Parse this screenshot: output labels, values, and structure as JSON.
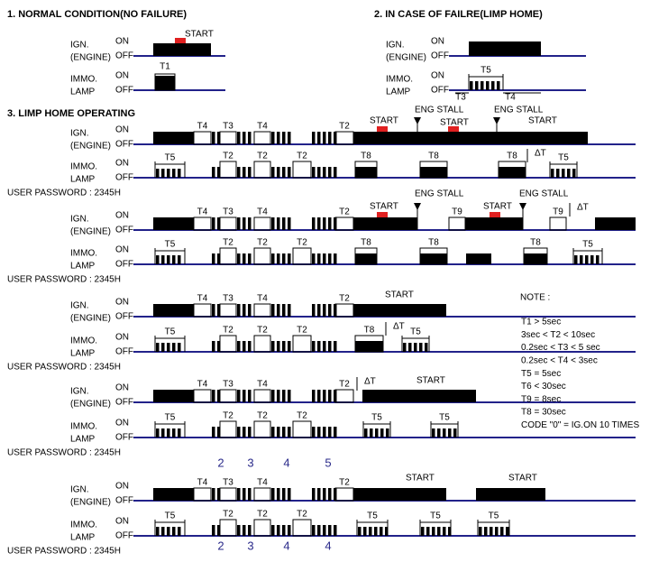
{
  "sections": [
    "1. NORMAL CONDITION(NO FAILURE)",
    "2. IN CASE OF FAILRE(LIMP HOME)",
    "3. LIMP HOME OPERATING"
  ],
  "signals": {
    "ign": "IGN.",
    "engine": "(ENGINE)",
    "immo": "IMMO.",
    "lamp": "LAMP",
    "on": "ON",
    "off": "OFF"
  },
  "labels": {
    "start": "START",
    "eng_stall": "ENG STALL",
    "t1": "T1",
    "t2": "T2",
    "t3": "T3",
    "t4": "T4",
    "t5": "T5",
    "t8": "T8",
    "t9": "T9",
    "delta_t": "ΔT"
  },
  "user_password": "USER PASSWORD : 2345H",
  "note": {
    "title": "NOTE :",
    "lines": [
      "T1 > 5sec",
      "3sec < T2 < 10sec",
      "0.2sec < T3 < 5 sec",
      "0.2sec < T4 < 3sec",
      "T5 = 5sec",
      "T6 < 30sec",
      "T9 = 8sec",
      "T8 = 30sec",
      "CODE \"0\" = IG.ON 10 TIMES"
    ]
  },
  "code_digits_top": [
    "2",
    "3",
    "4",
    "5"
  ],
  "code_digits_bottom": [
    "2",
    "3",
    "4",
    "4"
  ]
}
